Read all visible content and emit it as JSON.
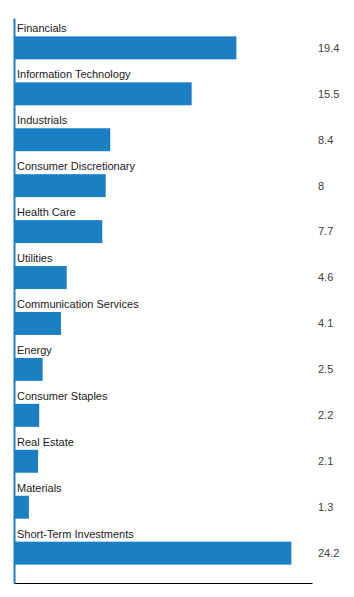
{
  "chart_data": {
    "type": "bar",
    "orientation": "horizontal",
    "categories": [
      "Short-Term Investments",
      "Materials",
      "Real Estate",
      "Consumer Staples",
      "Energy",
      "Communication Services",
      "Utilities",
      "Health Care",
      "Consumer Discretionary",
      "Industrials",
      "Information Technology",
      "Financials"
    ],
    "values": [
      24.2,
      1.3,
      2.1,
      2.2,
      2.5,
      4.1,
      4.6,
      7.7,
      8.0,
      8.4,
      15.5,
      19.4
    ],
    "color": "#1b7fc4",
    "xlim": [
      0,
      26
    ],
    "data_labels": true,
    "tick_labels": false
  }
}
